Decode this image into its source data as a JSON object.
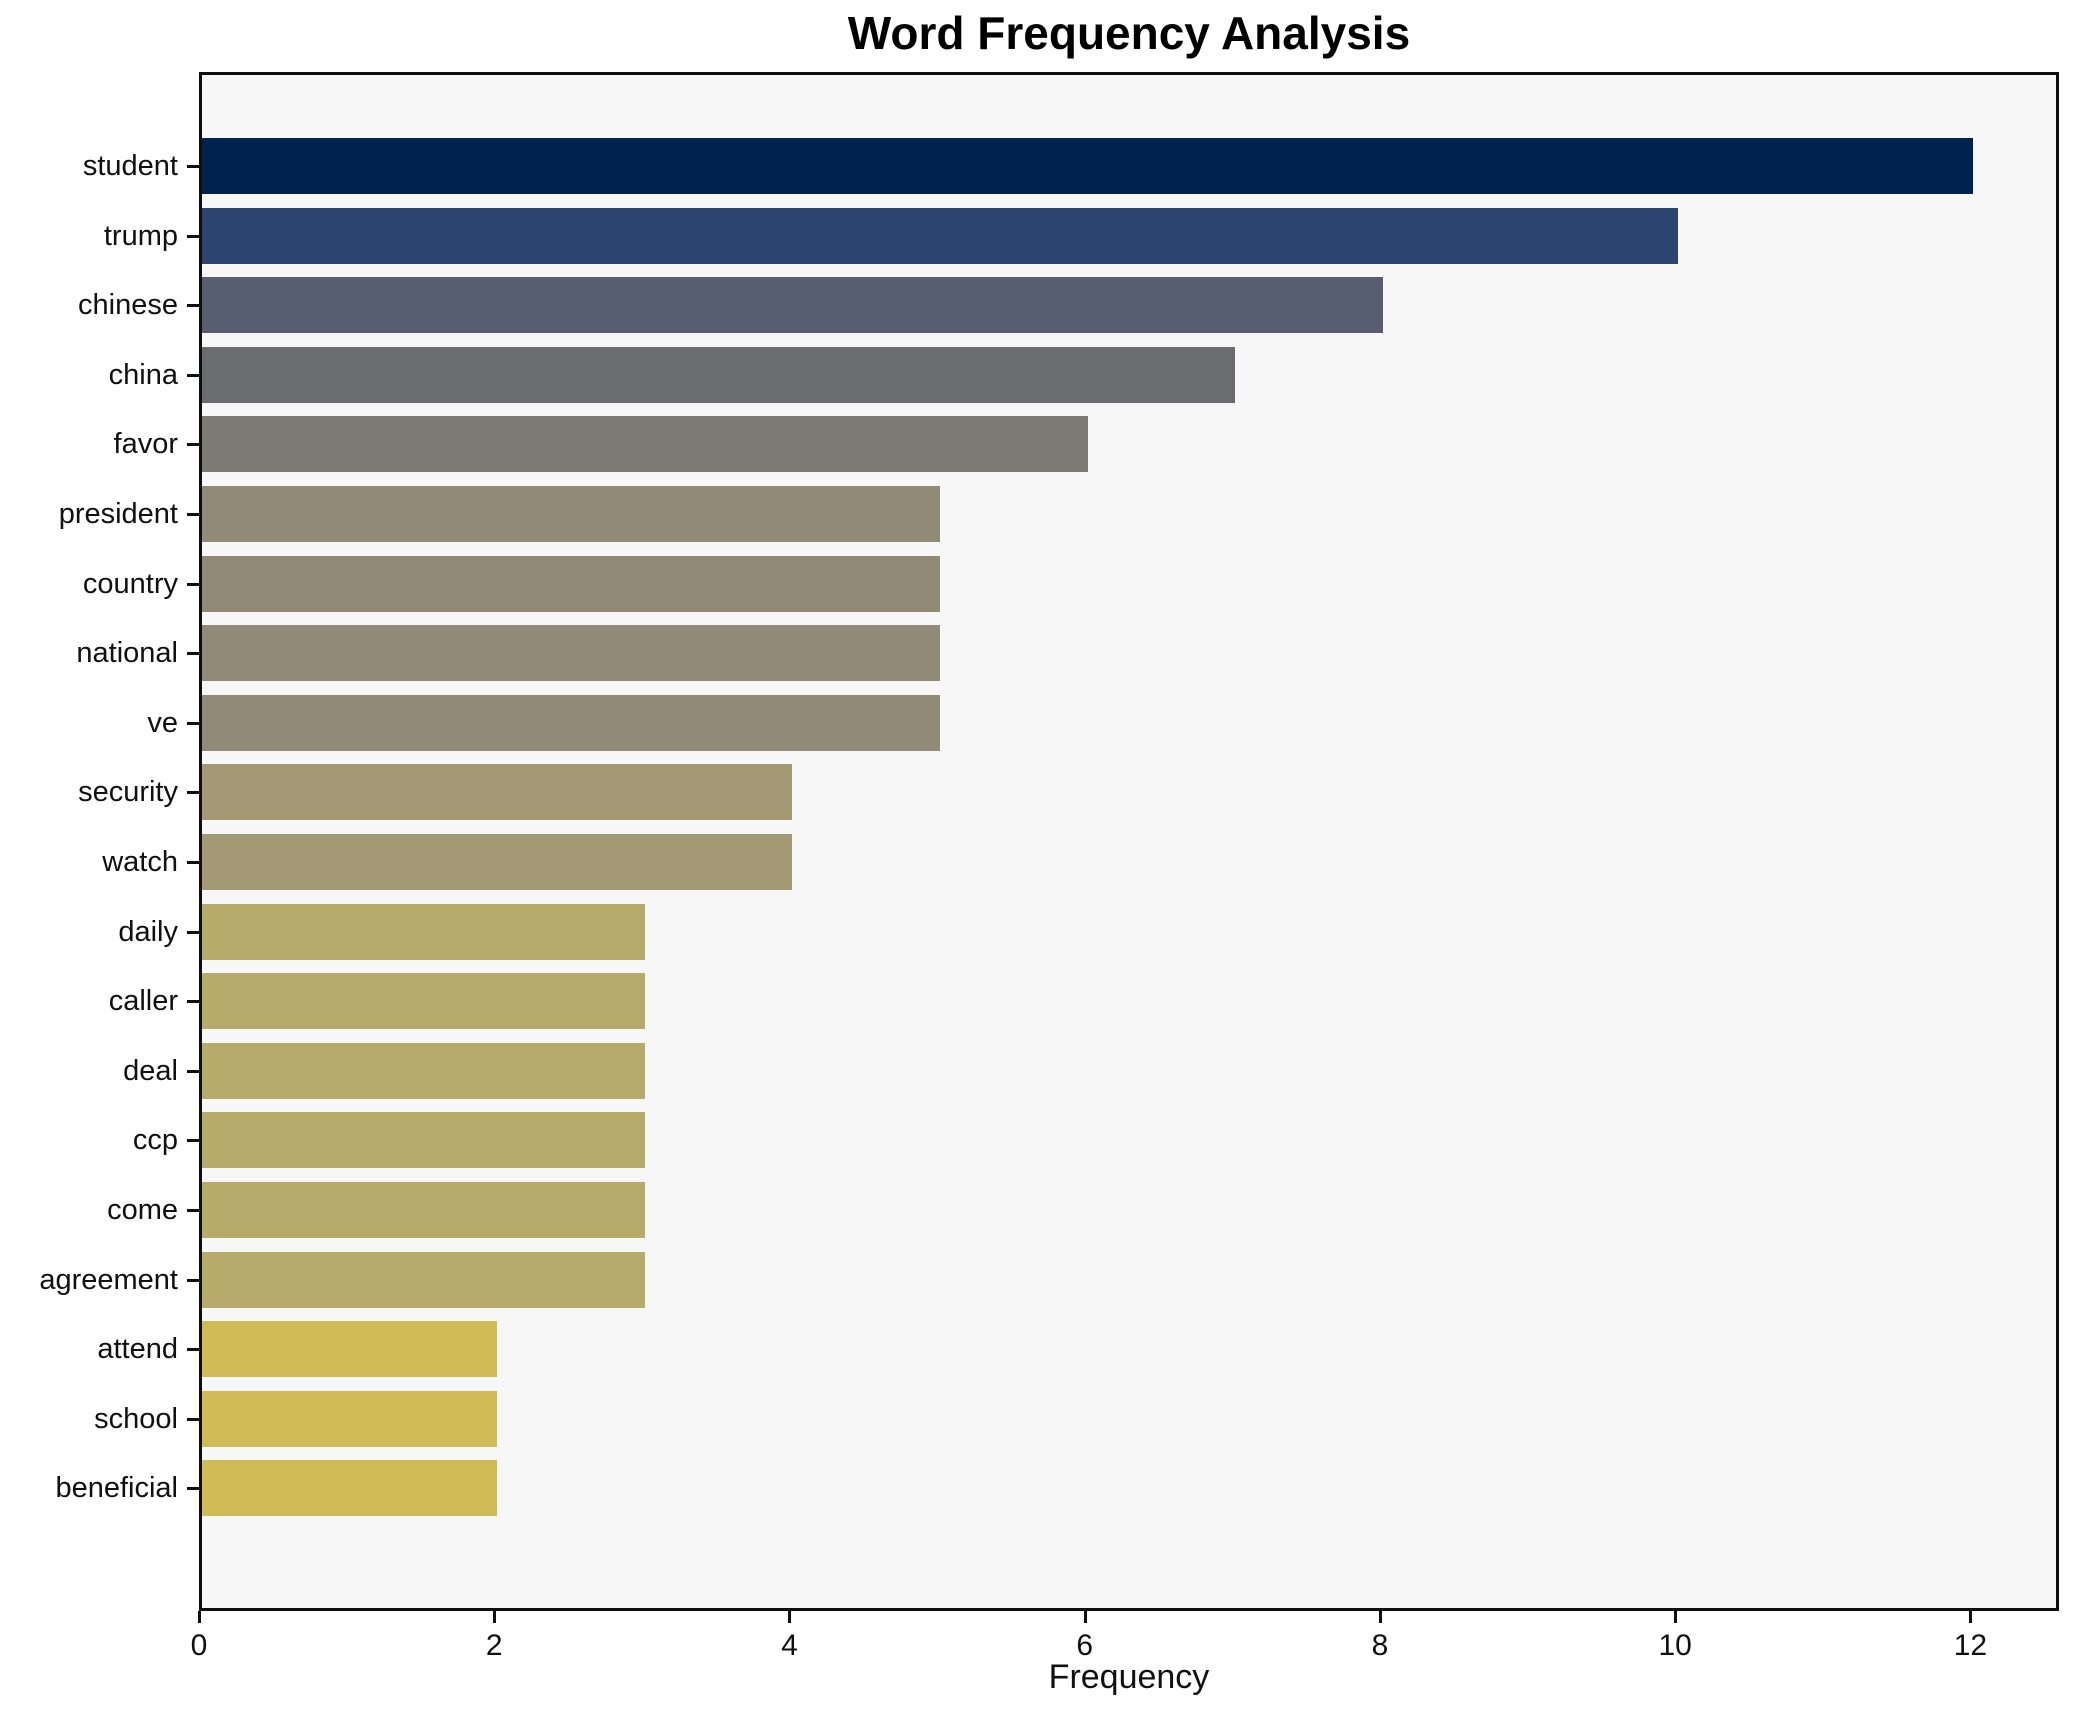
{
  "title": "Word Frequency Analysis",
  "xlabel": "Frequency",
  "chart_data": {
    "type": "bar",
    "orientation": "horizontal",
    "title": "Word Frequency Analysis",
    "xlabel": "Frequency",
    "ylabel": "",
    "grid": false,
    "legend": null,
    "plot_background": "#f7f7f8",
    "spine_color": "#0f0f0f",
    "xlim": [
      0,
      12.6
    ],
    "x_ticks": [
      "0",
      "2",
      "4",
      "6",
      "8",
      "10",
      "12"
    ],
    "x_tick_values": [
      0,
      2,
      4,
      6,
      8,
      10,
      12
    ],
    "categories": [
      "student",
      "trump",
      "chinese",
      "china",
      "favor",
      "president",
      "country",
      "national",
      "ve",
      "security",
      "watch",
      "daily",
      "caller",
      "deal",
      "ccp",
      "come",
      "agreement",
      "attend",
      "school",
      "beneficial"
    ],
    "values": [
      12,
      10,
      8,
      7,
      6,
      5,
      5,
      5,
      5,
      4,
      4,
      3,
      3,
      3,
      3,
      3,
      3,
      2,
      2,
      2
    ],
    "bar_colors": [
      "#00224e",
      "#2d4370",
      "#575e70",
      "#6a6c70",
      "#7b7a74",
      "#918a76",
      "#918a76",
      "#918a76",
      "#918a76",
      "#a39a75",
      "#a39a75",
      "#b6ab6b",
      "#b6ab6b",
      "#b6ab6b",
      "#b6ab6b",
      "#b6ab6b",
      "#b6ab6b",
      "#d1bb57",
      "#d1bb57",
      "#d1bb57"
    ]
  }
}
